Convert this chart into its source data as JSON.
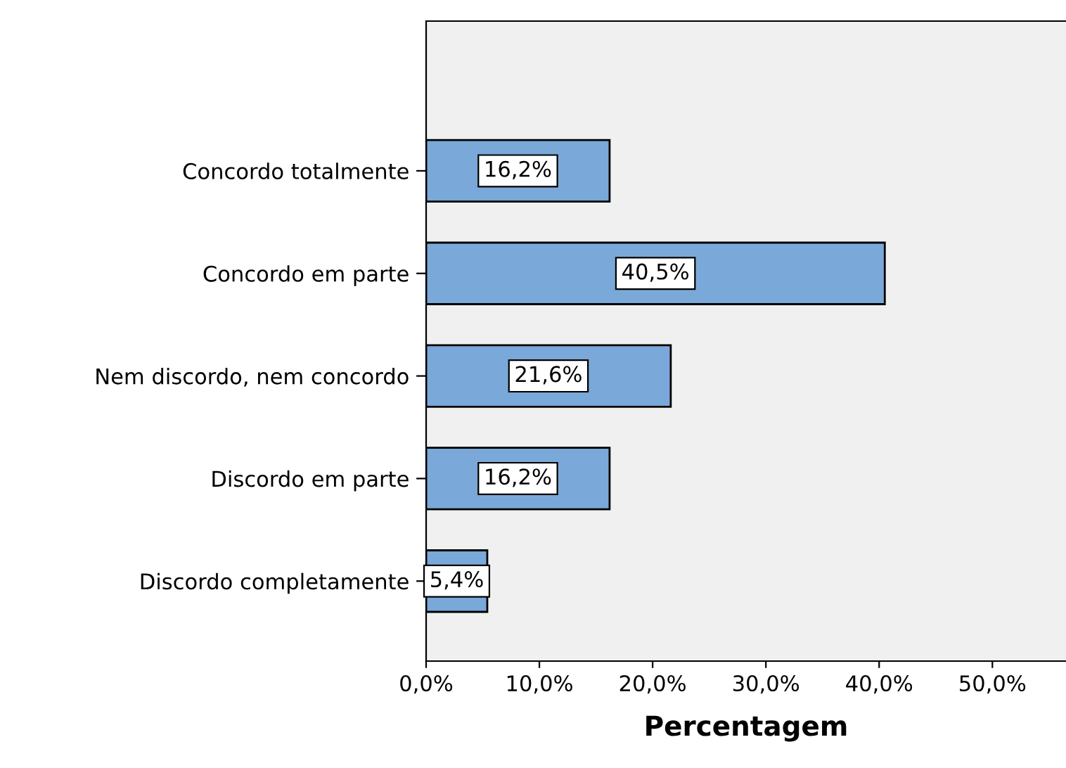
{
  "chart_data": {
    "type": "bar",
    "orientation": "horizontal",
    "xlabel": "Percentagem",
    "categories": [
      "Concordo totalmente",
      "Concordo em parte",
      "Nem discordo, nem concordo",
      "Discordo em parte",
      "Discordo completamente"
    ],
    "values": [
      16.2,
      40.5,
      21.6,
      16.2,
      5.4
    ],
    "value_labels": [
      "16,2%",
      "40,5%",
      "21,6%",
      "16,2%",
      "5,4%"
    ],
    "color": "#7aa8d8",
    "xlim": [
      0,
      56.5
    ],
    "xticks": [
      {
        "value": 0,
        "label": "0,0%"
      },
      {
        "value": 10,
        "label": "10,0%"
      },
      {
        "value": 20,
        "label": "20,0%"
      },
      {
        "value": 30,
        "label": "30,0%"
      },
      {
        "value": 40,
        "label": "40,0%"
      },
      {
        "value": 50,
        "label": "50,0%"
      }
    ],
    "grid": false
  }
}
